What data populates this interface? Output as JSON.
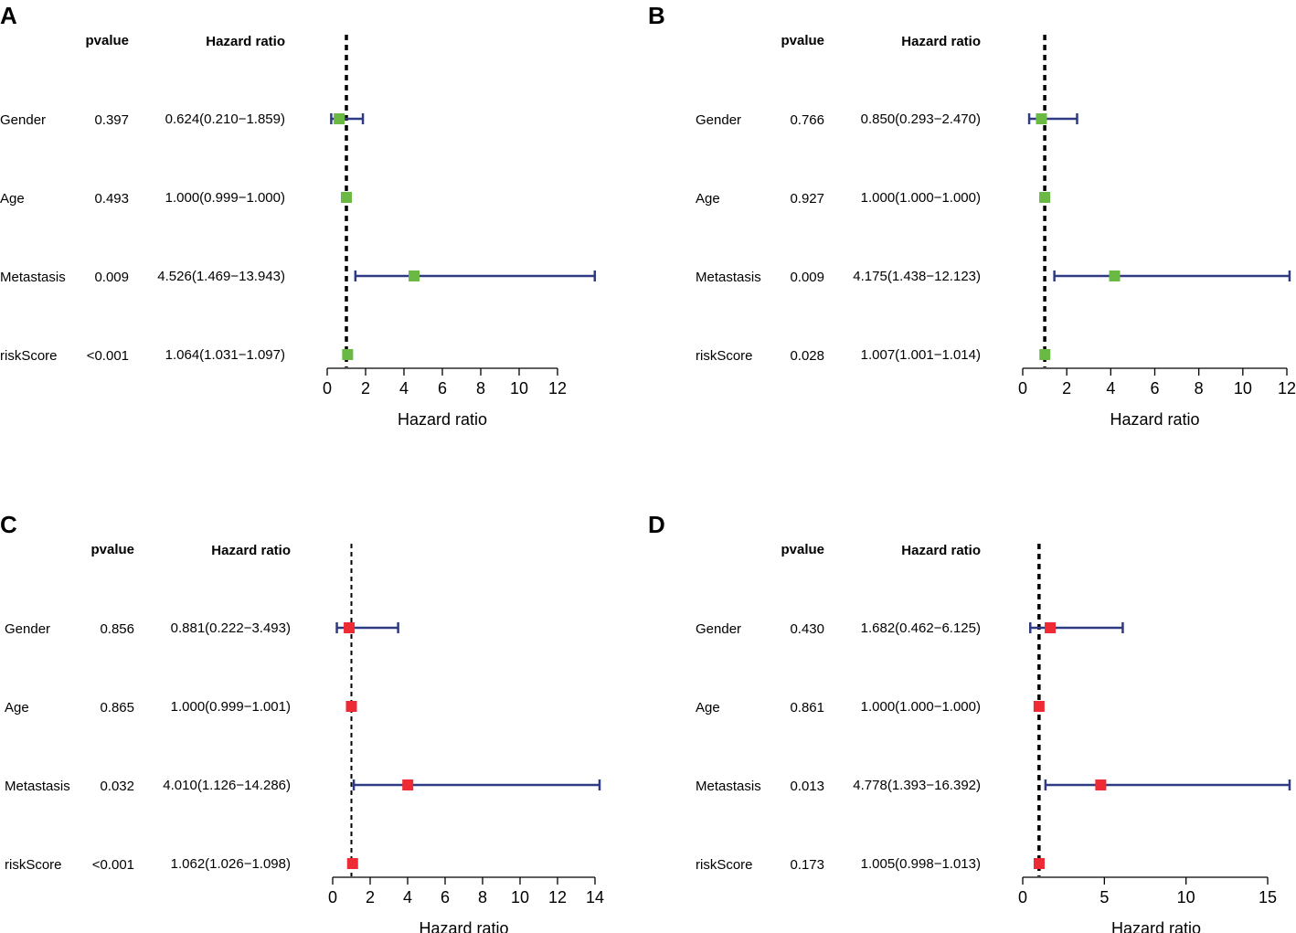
{
  "chart_data": [
    {
      "type": "forest",
      "panel": "A",
      "header_pvalue": "pvalue",
      "header_hr": "Hazard ratio",
      "xlabel": "Hazard ratio",
      "ticks": [
        0,
        2,
        4,
        6,
        8,
        10,
        12
      ],
      "tick_labels": [
        "0",
        "2",
        "4",
        "6",
        "8",
        "10",
        "12"
      ],
      "xlim": [
        0,
        12
      ],
      "reference": 1,
      "marker_color": "#6ab945",
      "rows": [
        {
          "label": "Gender",
          "pvalue": "0.397",
          "hr_text": "0.624(0.210−1.859)",
          "hr": 0.624,
          "lower": 0.21,
          "upper": 1.859
        },
        {
          "label": "Age",
          "pvalue": "0.493",
          "hr_text": "1.000(0.999−1.000)",
          "hr": 1.0,
          "lower": 0.999,
          "upper": 1.0
        },
        {
          "label": "Metastasis",
          "pvalue": "0.009",
          "hr_text": "4.526(1.469−13.943)",
          "hr": 4.526,
          "lower": 1.469,
          "upper": 13.943
        },
        {
          "label": "riskScore",
          "pvalue": "<0.001",
          "hr_text": "1.064(1.031−1.097)",
          "hr": 1.064,
          "lower": 1.031,
          "upper": 1.097
        }
      ]
    },
    {
      "type": "forest",
      "panel": "B",
      "header_pvalue": "pvalue",
      "header_hr": "Hazard ratio",
      "xlabel": "Hazard ratio",
      "ticks": [
        0,
        2,
        4,
        6,
        8,
        10,
        12
      ],
      "tick_labels": [
        "0",
        "2",
        "4",
        "6",
        "8",
        "10",
        "12"
      ],
      "xlim": [
        0,
        12
      ],
      "reference": 1,
      "marker_color": "#6ab945",
      "rows": [
        {
          "label": "Gender",
          "pvalue": "0.766",
          "hr_text": "0.850(0.293−2.470)",
          "hr": 0.85,
          "lower": 0.293,
          "upper": 2.47
        },
        {
          "label": "Age",
          "pvalue": "0.927",
          "hr_text": "1.000(1.000−1.000)",
          "hr": 1.0,
          "lower": 1.0,
          "upper": 1.0
        },
        {
          "label": "Metastasis",
          "pvalue": "0.009",
          "hr_text": "4.175(1.438−12.123)",
          "hr": 4.175,
          "lower": 1.438,
          "upper": 12.123
        },
        {
          "label": "riskScore",
          "pvalue": "0.028",
          "hr_text": "1.007(1.001−1.014)",
          "hr": 1.007,
          "lower": 1.001,
          "upper": 1.014
        }
      ]
    },
    {
      "type": "forest",
      "panel": "C",
      "header_pvalue": "pvalue",
      "header_hr": "Hazard ratio",
      "xlabel": "Hazard ratio",
      "ticks": [
        0,
        2,
        4,
        6,
        8,
        10,
        12,
        14
      ],
      "tick_labels": [
        "0",
        "2",
        "4",
        "6",
        "8",
        "10",
        "12",
        "14"
      ],
      "xlim": [
        0,
        14
      ],
      "reference": 1,
      "marker_color": "#ee2b35",
      "rows": [
        {
          "label": "Gender",
          "pvalue": "0.856",
          "hr_text": "0.881(0.222−3.493)",
          "hr": 0.881,
          "lower": 0.222,
          "upper": 3.493
        },
        {
          "label": "Age",
          "pvalue": "0.865",
          "hr_text": "1.000(0.999−1.001)",
          "hr": 1.0,
          "lower": 0.999,
          "upper": 1.001
        },
        {
          "label": "Metastasis",
          "pvalue": "0.032",
          "hr_text": "4.010(1.126−14.286)",
          "hr": 4.01,
          "lower": 1.126,
          "upper": 14.286
        },
        {
          "label": "riskScore",
          "pvalue": "<0.001",
          "hr_text": "1.062(1.026−1.098)",
          "hr": 1.062,
          "lower": 1.026,
          "upper": 1.098
        }
      ]
    },
    {
      "type": "forest",
      "panel": "D",
      "header_pvalue": "pvalue",
      "header_hr": "Hazard ratio",
      "xlabel": "Hazard ratio",
      "ticks": [
        0,
        5,
        10,
        15
      ],
      "tick_labels": [
        "0",
        "5",
        "10",
        "15"
      ],
      "xlim": [
        0,
        15
      ],
      "reference": 1,
      "marker_color": "#ee2b35",
      "rows": [
        {
          "label": "Gender",
          "pvalue": "0.430",
          "hr_text": "1.682(0.462−6.125)",
          "hr": 1.682,
          "lower": 0.462,
          "upper": 6.125
        },
        {
          "label": "Age",
          "pvalue": "0.861",
          "hr_text": "1.000(1.000−1.000)",
          "hr": 1.0,
          "lower": 1.0,
          "upper": 1.0
        },
        {
          "label": "Metastasis",
          "pvalue": "0.013",
          "hr_text": "4.778(1.393−16.392)",
          "hr": 4.778,
          "lower": 1.393,
          "upper": 16.392
        },
        {
          "label": "riskScore",
          "pvalue": "0.173",
          "hr_text": "1.005(0.998−1.013)",
          "hr": 1.005,
          "lower": 0.998,
          "upper": 1.013
        }
      ]
    }
  ],
  "colors": {
    "ci_line": "#2e3a82",
    "reference_line": "#000000"
  }
}
